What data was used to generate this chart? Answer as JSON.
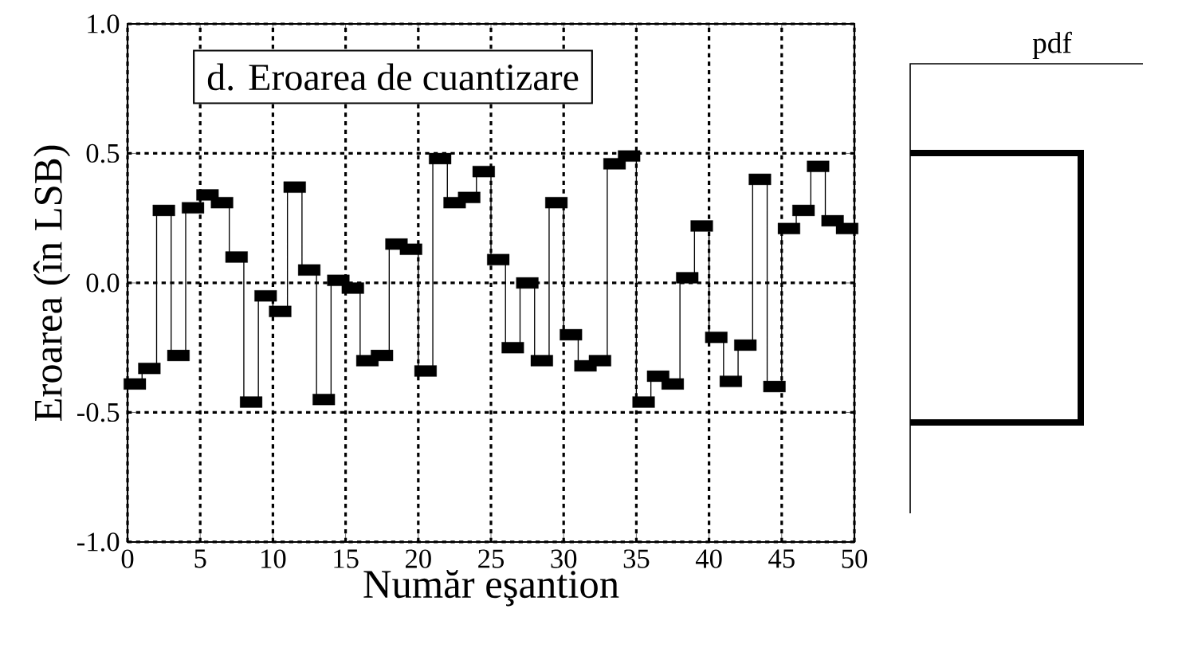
{
  "chart_data": [
    {
      "type": "step",
      "title": "d. Eroarea de cuantizare",
      "xlabel": "Număr eşantion",
      "ylabel": "Eroarea (în LSB)",
      "x": [
        0.5,
        1.5,
        2.5,
        3.5,
        4.5,
        5.5,
        6.5,
        7.5,
        8.5,
        9.5,
        10.5,
        11.5,
        12.5,
        13.5,
        14.5,
        15.5,
        16.5,
        17.5,
        18.5,
        19.5,
        20.5,
        21.5,
        22.5,
        23.5,
        24.5,
        25.5,
        26.5,
        27.5,
        28.5,
        29.5,
        30.5,
        31.5,
        32.5,
        33.5,
        34.5,
        35.5,
        36.5,
        37.5,
        38.5,
        39.5,
        40.5,
        41.5,
        42.5,
        43.5,
        44.5,
        45.5,
        46.5,
        47.5,
        48.5,
        49.5
      ],
      "values": [
        -0.39,
        -0.33,
        0.28,
        -0.28,
        0.29,
        0.34,
        0.31,
        0.1,
        -0.46,
        -0.05,
        -0.11,
        0.37,
        0.05,
        -0.45,
        0.01,
        -0.02,
        -0.3,
        -0.28,
        0.15,
        0.13,
        -0.34,
        0.48,
        0.31,
        0.33,
        0.43,
        0.09,
        -0.25,
        0.0,
        -0.3,
        0.31,
        -0.2,
        -0.32,
        -0.3,
        0.46,
        0.49,
        -0.46,
        -0.36,
        -0.39,
        0.02,
        0.22,
        -0.21,
        -0.38,
        -0.24,
        0.4,
        -0.4,
        0.21,
        0.28,
        0.45,
        0.24,
        0.21
      ],
      "color": "#000000",
      "marker": "square",
      "line_style": "solid",
      "xlim": [
        0,
        50
      ],
      "xticks": [
        0,
        5,
        10,
        15,
        20,
        25,
        30,
        35,
        40,
        45,
        50
      ],
      "ylim": [
        -1.0,
        1.0
      ],
      "yticks": [
        {
          "value": -1.0,
          "label": "-1.0"
        },
        {
          "value": -0.5,
          "label": "-0.5"
        },
        {
          "value": 0,
          "label": "0.0"
        },
        {
          "value": 0.5,
          "label": "0.5"
        },
        {
          "value": 1.0,
          "label": "1.0"
        }
      ],
      "grid": true
    },
    {
      "type": "other",
      "title": "pdf"
    }
  ]
}
